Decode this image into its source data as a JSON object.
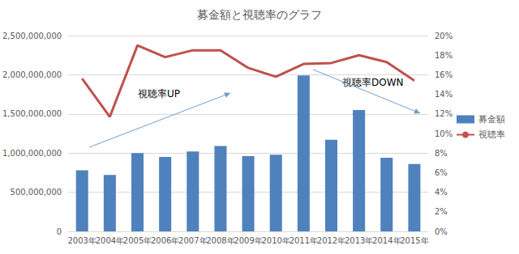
{
  "chart_data": {
    "type": "bar",
    "title": "募金額と視聴率のグラフ",
    "categories": [
      "2003年",
      "2004年",
      "2005年",
      "2006年",
      "2007年",
      "2008年",
      "2009年",
      "2010年",
      "2011年",
      "2012年",
      "2013年",
      "2014年",
      "2015年"
    ],
    "series": [
      {
        "name": "募金額",
        "type": "bar",
        "color": "#4f81bd",
        "values": [
          780000000,
          720000000,
          1000000000,
          950000000,
          1020000000,
          1090000000,
          960000000,
          980000000,
          1990000000,
          1170000000,
          1550000000,
          940000000,
          860000000
        ]
      },
      {
        "name": "視聴率",
        "type": "line",
        "color": "#c0504d",
        "axis": "y2",
        "marker": "none",
        "values": [
          15.6,
          11.7,
          19.0,
          17.8,
          18.5,
          18.5,
          16.7,
          15.8,
          17.1,
          17.2,
          18.0,
          17.3,
          15.4
        ]
      }
    ],
    "ylim": [
      0,
      2500000000
    ],
    "yticks": [
      0,
      {
        "value": 500000000,
        "label": "500,000,000"
      },
      {
        "value": 1000000000,
        "label": "1,000,000,000"
      },
      {
        "value": 1500000000,
        "label": "1,500,000,000"
      },
      {
        "value": 2000000000,
        "label": "2,000,000,000"
      },
      {
        "value": 2500000000,
        "label": "2,500,000,000"
      }
    ],
    "y2lim": [
      0,
      20
    ],
    "y2ticks": [
      {
        "value": 0,
        "label": "0%"
      },
      {
        "value": 2,
        "label": "2%"
      },
      {
        "value": 4,
        "label": "4%"
      },
      {
        "value": 6,
        "label": "6%"
      },
      {
        "value": 8,
        "label": "8%"
      },
      {
        "value": 10,
        "label": "10%"
      },
      {
        "value": 12,
        "label": "12%"
      },
      {
        "value": 14,
        "label": "14%"
      },
      {
        "value": 16,
        "label": "16%"
      },
      {
        "value": 18,
        "label": "18%"
      },
      {
        "value": 20,
        "label": "20%"
      }
    ],
    "annotations": [
      "視聴率UP",
      "視聴率DOWN"
    ],
    "grid": true,
    "legend": "right"
  }
}
